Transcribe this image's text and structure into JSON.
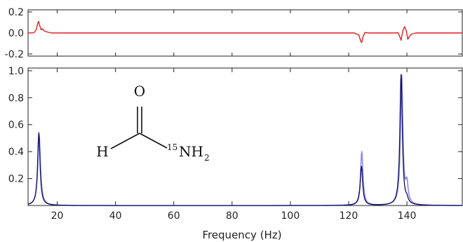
{
  "chart_data": [
    {
      "panel": "residual",
      "type": "line",
      "xlim": [
        10,
        159
      ],
      "ylim": [
        -0.22,
        0.22
      ],
      "yticks": [
        -0.2,
        0.0,
        0.2
      ],
      "ytick_labels": [
        "-0.2",
        "0.0",
        "0.2"
      ],
      "grid": false,
      "series": [
        {
          "color": "#e02020",
          "x": [
            10,
            12,
            12.8,
            13.3,
            13.6,
            14.0,
            14.5,
            15.0,
            15.5,
            16.5,
            18,
            30,
            60,
            90,
            110,
            122,
            123.5,
            124.2,
            124.5,
            124.9,
            125.6,
            127,
            135,
            137,
            137.6,
            138.0,
            138.3,
            138.7,
            139.2,
            139.8,
            140.3,
            140.9,
            141.6,
            143,
            150,
            159
          ],
          "y": [
            0.0,
            0.002,
            0.03,
            0.09,
            0.11,
            0.07,
            0.03,
            0.04,
            0.02,
            0.01,
            0.0,
            0.0,
            0.0,
            0.0,
            0.0,
            0.0,
            -0.02,
            -0.08,
            -0.09,
            -0.04,
            0.005,
            0.0,
            0.0,
            0.002,
            -0.04,
            -0.07,
            -0.02,
            0.03,
            0.06,
            0.02,
            -0.06,
            -0.03,
            -0.01,
            0.0,
            0.0,
            0.0
          ]
        }
      ]
    },
    {
      "panel": "spectrum",
      "type": "line",
      "xlim": [
        10,
        159
      ],
      "ylim": [
        0,
        1.02
      ],
      "xticks": [
        20,
        40,
        60,
        80,
        100,
        120,
        140
      ],
      "xtick_labels": [
        "20",
        "40",
        "60",
        "80",
        "100",
        "120",
        "140"
      ],
      "yticks": [
        0.2,
        0.4,
        0.6,
        0.8,
        1.0
      ],
      "ytick_labels": [
        "0.2",
        "0.4",
        "0.6",
        "0.8",
        "1.0"
      ],
      "xlabel": "Frequency (Hz)",
      "grid": false,
      "series": [
        {
          "color": "#8c8cf0",
          "peaks": [
            {
              "x0": 13.8,
              "amp": 0.52,
              "w": 0.55
            },
            {
              "x0": 124.5,
              "amp": 0.4,
              "w": 0.5
            },
            {
              "x0": 138.2,
              "amp": 0.96,
              "w": 0.5
            },
            {
              "x0": 140.0,
              "amp": 0.14,
              "w": 0.5
            }
          ],
          "baseline": 0.0
        },
        {
          "color": "#0d0d5e",
          "peaks": [
            {
              "x0": 13.7,
              "amp": 0.54,
              "w": 0.5
            },
            {
              "x0": 124.4,
              "amp": 0.29,
              "w": 0.5
            },
            {
              "x0": 138.0,
              "amp": 0.97,
              "w": 0.5
            },
            {
              "x0": 140.0,
              "amp": 0.03,
              "w": 0.5
            }
          ],
          "baseline": 0.0
        }
      ]
    }
  ],
  "molecule": {
    "atom_o": "O",
    "atom_h": "H",
    "isotope": "15",
    "nh_label": "NH",
    "subscript": "2"
  }
}
